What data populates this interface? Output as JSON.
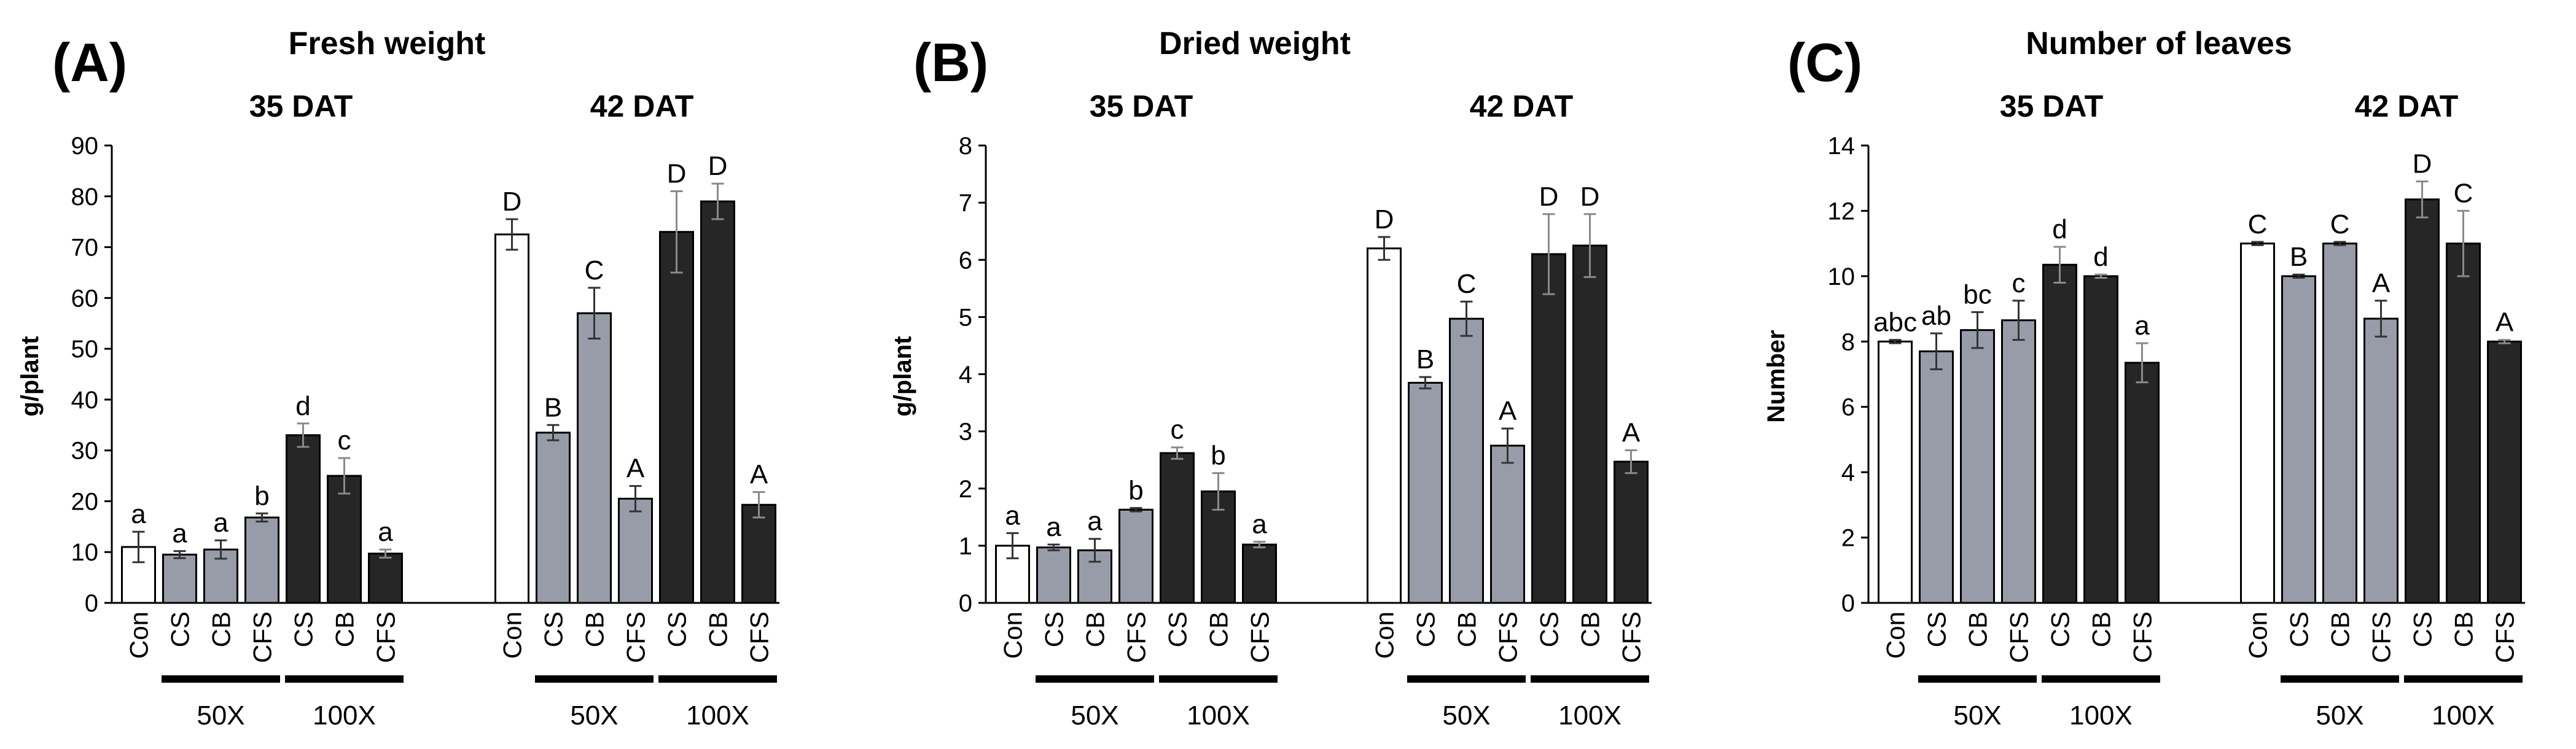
{
  "style": {
    "color_con": "#ffffff",
    "color_50x": "#979ca8",
    "color_100x": "#262626",
    "axis_color": "#000000"
  },
  "chart_data": [
    {
      "type": "bar",
      "panel_label": "(A)",
      "title": "Fresh weight",
      "ylabel": "g/plant",
      "ylim": [
        0,
        90
      ],
      "yticks": [
        0,
        10,
        20,
        30,
        40,
        50,
        60,
        70,
        80,
        90
      ],
      "groups": [
        {
          "label": "35 DAT",
          "categories": [
            "Con",
            "CS",
            "CB",
            "CFS",
            "CS",
            "CB",
            "CFS"
          ],
          "treatment": [
            "con",
            "50x",
            "50x",
            "50x",
            "100x",
            "100x",
            "100x"
          ],
          "values": [
            11.0,
            9.5,
            10.5,
            16.8,
            33.0,
            25.0,
            9.7
          ],
          "errors": [
            3.0,
            0.7,
            1.8,
            0.8,
            2.3,
            3.5,
            0.8
          ],
          "letters": [
            "a",
            "a",
            "a",
            "b",
            "d",
            "c",
            "a"
          ],
          "dose_labels": [
            "50X",
            "100X"
          ]
        },
        {
          "label": "42 DAT",
          "categories": [
            "Con",
            "CS",
            "CB",
            "CFS",
            "CS",
            "CB",
            "CFS"
          ],
          "treatment": [
            "con",
            "50x",
            "50x",
            "50x",
            "100x",
            "100x",
            "100x"
          ],
          "values": [
            72.5,
            33.5,
            57.0,
            20.5,
            73.0,
            79.0,
            19.3
          ],
          "errors": [
            3.0,
            1.5,
            5.0,
            2.5,
            8.0,
            3.5,
            2.5
          ],
          "letters": [
            "D",
            "B",
            "C",
            "A",
            "D",
            "D",
            "A"
          ],
          "dose_labels": [
            "50X",
            "100X"
          ]
        }
      ]
    },
    {
      "type": "bar",
      "panel_label": "(B)",
      "title": "Dried weight",
      "ylabel": "g/plant",
      "ylim": [
        0,
        8
      ],
      "yticks": [
        0,
        1,
        2,
        3,
        4,
        5,
        6,
        7,
        8
      ],
      "groups": [
        {
          "label": "35 DAT",
          "categories": [
            "Con",
            "CS",
            "CB",
            "CFS",
            "CS",
            "CB",
            "CFS"
          ],
          "treatment": [
            "con",
            "50x",
            "50x",
            "50x",
            "100x",
            "100x",
            "100x"
          ],
          "values": [
            1.0,
            0.97,
            0.92,
            1.63,
            2.62,
            1.95,
            1.02
          ],
          "errors": [
            0.22,
            0.05,
            0.2,
            0.03,
            0.1,
            0.32,
            0.05
          ],
          "letters": [
            "a",
            "a",
            "a",
            "b",
            "c",
            "b",
            "a"
          ],
          "dose_labels": [
            "50X",
            "100X"
          ]
        },
        {
          "label": "42 DAT",
          "categories": [
            "Con",
            "CS",
            "CB",
            "CFS",
            "CS",
            "CB",
            "CFS"
          ],
          "treatment": [
            "con",
            "50x",
            "50x",
            "50x",
            "100x",
            "100x",
            "100x"
          ],
          "values": [
            6.2,
            3.85,
            4.97,
            2.75,
            6.1,
            6.25,
            2.47
          ],
          "errors": [
            0.2,
            0.1,
            0.3,
            0.3,
            0.7,
            0.55,
            0.2
          ],
          "letters": [
            "D",
            "B",
            "C",
            "A",
            "D",
            "D",
            "A"
          ],
          "dose_labels": [
            "50X",
            "100X"
          ]
        }
      ]
    },
    {
      "type": "bar",
      "panel_label": "(C)",
      "title": "Number of leaves",
      "ylabel": "Number",
      "ylim": [
        0,
        14
      ],
      "yticks": [
        0,
        2,
        4,
        6,
        8,
        10,
        12,
        14
      ],
      "groups": [
        {
          "label": "35 DAT",
          "categories": [
            "Con",
            "CS",
            "CB",
            "CFS",
            "CS",
            "CB",
            "CFS"
          ],
          "treatment": [
            "con",
            "50x",
            "50x",
            "50x",
            "100x",
            "100x",
            "100x"
          ],
          "values": [
            8.0,
            7.7,
            8.35,
            8.65,
            10.35,
            10.0,
            7.35
          ],
          "errors": [
            0.05,
            0.55,
            0.55,
            0.6,
            0.55,
            0.05,
            0.6
          ],
          "letters": [
            "abc",
            "ab",
            "bc",
            "c",
            "d",
            "d",
            "a"
          ],
          "dose_labels": [
            "50X",
            "100X"
          ]
        },
        {
          "label": "42 DAT",
          "categories": [
            "Con",
            "CS",
            "CB",
            "CFS",
            "CS",
            "CB",
            "CFS"
          ],
          "treatment": [
            "con",
            "50x",
            "50x",
            "50x",
            "100x",
            "100x",
            "100x"
          ],
          "values": [
            11.0,
            10.0,
            11.0,
            8.7,
            12.35,
            11.0,
            8.0
          ],
          "errors": [
            0.05,
            0.05,
            0.05,
            0.55,
            0.55,
            1.0,
            0.05
          ],
          "letters": [
            "C",
            "B",
            "C",
            "A",
            "D",
            "C",
            "A"
          ],
          "dose_labels": [
            "50X",
            "100X"
          ]
        }
      ]
    }
  ]
}
